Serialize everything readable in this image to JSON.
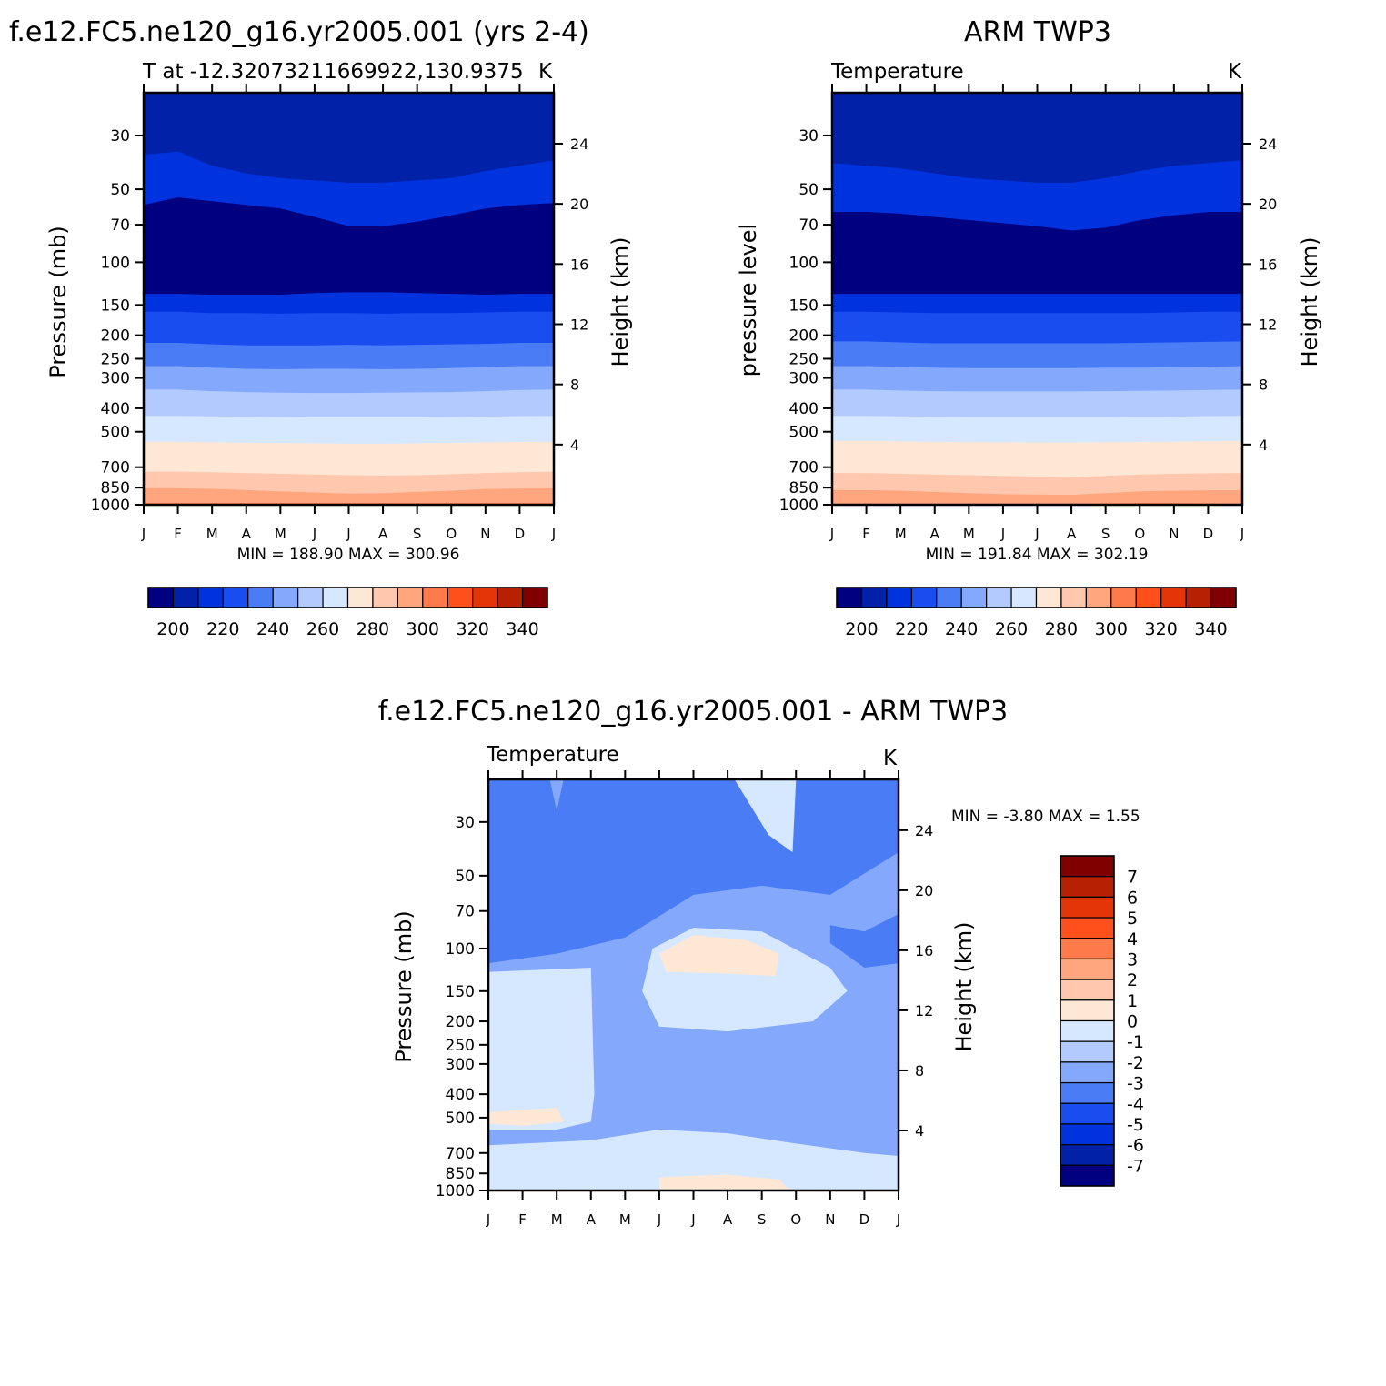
{
  "colors": {
    "temp_levels": [
      "#000080",
      "#0021a8",
      "#0033dd",
      "#1a4df0",
      "#4a7df5",
      "#84a8fb",
      "#b3caff",
      "#d6e8ff",
      "#ffe7d6",
      "#ffc8ae",
      "#ffa67f",
      "#ff7a4a",
      "#ff4f1a",
      "#e43508",
      "#b82004",
      "#800000"
    ],
    "diff_levels": [
      "#800000",
      "#b82004",
      "#e43508",
      "#ff4f1a",
      "#ff7a4a",
      "#ffa67f",
      "#ffc8ae",
      "#ffe7d6",
      "#d6e8ff",
      "#b3caff",
      "#84a8fb",
      "#4a7df5",
      "#1a4df0",
      "#0033dd",
      "#0021a8",
      "#000080"
    ]
  },
  "chart_data": [
    {
      "id": "model",
      "type": "heatmap",
      "title": "f.e12.FC5.ne120_g16.yr2005.001 (yrs 2-4)",
      "subtitle_left": "T at -12.32073211669922,130.9375",
      "subtitle_right": "K",
      "ylabel": "Pressure (mb)",
      "y2label": "Height (km)",
      "minmax": "MIN =  188.90 MAX =  300.96",
      "x_ticks": [
        "J",
        "F",
        "M",
        "A",
        "M",
        "J",
        "J",
        "A",
        "S",
        "O",
        "N",
        "D",
        "J"
      ],
      "pressure_ticks": [
        "30",
        "50",
        "70",
        "100",
        "150",
        "200",
        "250",
        "300",
        "400",
        "500",
        "700",
        "850",
        "1000"
      ],
      "pressure_values": [
        30,
        50,
        70,
        100,
        150,
        200,
        250,
        300,
        400,
        500,
        700,
        850,
        1000
      ],
      "height_ticks": [
        "24",
        "20",
        "16",
        "12",
        "8",
        "4"
      ],
      "height_values": [
        24,
        20,
        16,
        12,
        8,
        4
      ],
      "ylim_mb": [
        20,
        1000
      ],
      "contour_bands": [
        {
          "level": 200,
          "top_mb": [
            20,
            20,
            20,
            20,
            20,
            20,
            20,
            20,
            20,
            20,
            20,
            20,
            20
          ]
        },
        {
          "level": 210,
          "top_mb": [
            36,
            35,
            40,
            43,
            45,
            46,
            47,
            47,
            46,
            45,
            42,
            40,
            38
          ]
        },
        {
          "level": 190,
          "top_mb": [
            58,
            54,
            56,
            58,
            60,
            65,
            71,
            71,
            68,
            64,
            60,
            58,
            57
          ]
        },
        {
          "level": 210,
          "top_mb": [
            135,
            135,
            136,
            136,
            136,
            134,
            133,
            133,
            134,
            135,
            136,
            135,
            135
          ]
        },
        {
          "level": 220,
          "top_mb": [
            160,
            160,
            162,
            162,
            163,
            162,
            162,
            163,
            162,
            162,
            161,
            160,
            160
          ]
        },
        {
          "level": 230,
          "top_mb": [
            215,
            215,
            218,
            220,
            220,
            220,
            219,
            220,
            219,
            218,
            217,
            215,
            215
          ]
        },
        {
          "level": 240,
          "top_mb": [
            268,
            268,
            272,
            275,
            276,
            275,
            275,
            276,
            275,
            273,
            271,
            268,
            268
          ]
        },
        {
          "level": 250,
          "top_mb": [
            335,
            335,
            340,
            343,
            345,
            346,
            346,
            345,
            344,
            343,
            340,
            336,
            335
          ]
        },
        {
          "level": 260,
          "top_mb": [
            430,
            430,
            432,
            434,
            435,
            436,
            436,
            436,
            436,
            435,
            433,
            431,
            430
          ]
        },
        {
          "level": 270,
          "top_mb": [
            550,
            550,
            553,
            555,
            557,
            558,
            560,
            560,
            558,
            556,
            553,
            551,
            550
          ]
        },
        {
          "level": 280,
          "top_mb": [
            730,
            730,
            735,
            740,
            745,
            750,
            755,
            758,
            755,
            748,
            740,
            735,
            730
          ]
        },
        {
          "level": 290,
          "top_mb": [
            855,
            855,
            860,
            870,
            880,
            890,
            900,
            895,
            885,
            875,
            862,
            857,
            855
          ]
        },
        {
          "level": 300,
          "top_mb": [
            985,
            985,
            985,
            985,
            985,
            985,
            985,
            985,
            985,
            985,
            985,
            985,
            985
          ]
        }
      ],
      "colorbar_labels": [
        "200",
        "220",
        "240",
        "260",
        "280",
        "300",
        "320",
        "340"
      ]
    },
    {
      "id": "obs",
      "type": "heatmap",
      "title": "ARM TWP3",
      "subtitle_left": "Temperature",
      "subtitle_right": "K",
      "ylabel": "pressure level",
      "y2label": "Height (km)",
      "minmax": "MIN =  191.84 MAX =  302.19",
      "x_ticks": [
        "J",
        "F",
        "M",
        "A",
        "M",
        "J",
        "J",
        "A",
        "S",
        "O",
        "N",
        "D",
        "J"
      ],
      "pressure_ticks": [
        "30",
        "50",
        "70",
        "100",
        "150",
        "200",
        "250",
        "300",
        "400",
        "500",
        "700",
        "850",
        "1000"
      ],
      "pressure_values": [
        30,
        50,
        70,
        100,
        150,
        200,
        250,
        300,
        400,
        500,
        700,
        850,
        1000
      ],
      "height_ticks": [
        "24",
        "20",
        "16",
        "12",
        "8",
        "4"
      ],
      "height_values": [
        24,
        20,
        16,
        12,
        8,
        4
      ],
      "ylim_mb": [
        20,
        1000
      ],
      "contour_bands": [
        {
          "level": 200,
          "top_mb": [
            20,
            20,
            20,
            20,
            20,
            20,
            20,
            20,
            20,
            20,
            20,
            20,
            20
          ]
        },
        {
          "level": 210,
          "top_mb": [
            39,
            40,
            41,
            43,
            45,
            46,
            47,
            47,
            45,
            42,
            40,
            39,
            38
          ]
        },
        {
          "level": 190,
          "top_mb": [
            62,
            62,
            63,
            65,
            67,
            69,
            71,
            74,
            72,
            67,
            64,
            62,
            62
          ]
        },
        {
          "level": 210,
          "top_mb": [
            135,
            135,
            135,
            135,
            135,
            135,
            135,
            135,
            135,
            135,
            135,
            135,
            135
          ]
        },
        {
          "level": 220,
          "top_mb": [
            160,
            160,
            161,
            162,
            162,
            162,
            162,
            162,
            162,
            162,
            161,
            160,
            160
          ]
        },
        {
          "level": 230,
          "top_mb": [
            212,
            212,
            214,
            216,
            216,
            216,
            216,
            216,
            216,
            215,
            214,
            213,
            212
          ]
        },
        {
          "level": 240,
          "top_mb": [
            268,
            268,
            270,
            272,
            273,
            273,
            273,
            273,
            272,
            272,
            271,
            270,
            268
          ]
        },
        {
          "level": 250,
          "top_mb": [
            335,
            335,
            338,
            340,
            341,
            341,
            341,
            341,
            340,
            339,
            338,
            336,
            335
          ]
        },
        {
          "level": 260,
          "top_mb": [
            430,
            430,
            432,
            434,
            435,
            435,
            435,
            435,
            435,
            434,
            433,
            431,
            430
          ]
        },
        {
          "level": 270,
          "top_mb": [
            545,
            545,
            548,
            550,
            552,
            553,
            554,
            554,
            553,
            551,
            549,
            547,
            545
          ]
        },
        {
          "level": 280,
          "top_mb": [
            740,
            740,
            745,
            750,
            755,
            760,
            765,
            770,
            760,
            750,
            745,
            742,
            740
          ]
        },
        {
          "level": 290,
          "top_mb": [
            870,
            870,
            875,
            885,
            895,
            905,
            908,
            910,
            895,
            880,
            875,
            872,
            870
          ]
        },
        {
          "level": 300,
          "top_mb": [
            995,
            995,
            995,
            995,
            995,
            995,
            995,
            995,
            990,
            985,
            985,
            990,
            995
          ]
        }
      ],
      "colorbar_labels": [
        "200",
        "220",
        "240",
        "260",
        "280",
        "300",
        "320",
        "340"
      ]
    },
    {
      "id": "diff",
      "type": "heatmap",
      "title": "f.e12.FC5.ne120_g16.yr2005.001 - ARM TWP3",
      "subtitle_left": "Temperature",
      "subtitle_right": "K",
      "ylabel": "Pressure (mb)",
      "y2label": "Height (km)",
      "minmax": "MIN =   -3.80 MAX =    1.55",
      "x_ticks": [
        "J",
        "F",
        "M",
        "A",
        "M",
        "J",
        "J",
        "A",
        "S",
        "O",
        "N",
        "D",
        "J"
      ],
      "pressure_ticks": [
        "30",
        "50",
        "70",
        "100",
        "150",
        "200",
        "250",
        "300",
        "400",
        "500",
        "700",
        "850",
        "1000"
      ],
      "pressure_values": [
        30,
        50,
        70,
        100,
        150,
        200,
        250,
        300,
        400,
        500,
        700,
        850,
        1000
      ],
      "height_ticks": [
        "24",
        "20",
        "16",
        "12",
        "8",
        "4"
      ],
      "height_values": [
        24,
        20,
        16,
        12,
        8,
        4
      ],
      "ylim_mb": [
        20,
        1000
      ],
      "regions": [
        {
          "level": "-3 to -2",
          "month_pressure_mb": [
            [
              0,
              20
            ],
            [
              12,
              20
            ],
            [
              12,
              1000
            ],
            [
              0,
              1000
            ]
          ]
        },
        {
          "level": "-2 to -1",
          "month_pressure_mb": [
            [
              0,
              115
            ],
            [
              2,
              105
            ],
            [
              4,
              90
            ],
            [
              6,
              60
            ],
            [
              8,
              55
            ],
            [
              10,
              60
            ],
            [
              12,
              40
            ],
            [
              12,
              1000
            ],
            [
              0,
              1000
            ]
          ]
        },
        {
          "level": "-1 to 0",
          "month_pressure_mb": [
            [
              0,
              125
            ],
            [
              3,
              120
            ],
            [
              3.1,
              400
            ],
            [
              3,
              520
            ],
            [
              2,
              560
            ],
            [
              0,
              560
            ]
          ]
        },
        {
          "level": "-1 to 0",
          "month_pressure_mb": [
            [
              0,
              650
            ],
            [
              3,
              620
            ],
            [
              5,
              560
            ],
            [
              7,
              580
            ],
            [
              9,
              640
            ],
            [
              11,
              700
            ],
            [
              12,
              720
            ],
            [
              12,
              1000
            ],
            [
              0,
              1000
            ]
          ]
        },
        {
          "level": "-1 to 0",
          "month_pressure_mb": [
            [
              4.8,
              100
            ],
            [
              6,
              82
            ],
            [
              8,
              85
            ],
            [
              10,
              120
            ],
            [
              10.5,
              150
            ],
            [
              9.5,
              200
            ],
            [
              7,
              220
            ],
            [
              5,
              210
            ],
            [
              4.5,
              150
            ]
          ]
        },
        {
          "level": "-1 to 0",
          "month_pressure_mb": [
            [
              7.2,
              20
            ],
            [
              9,
              20
            ],
            [
              8.9,
              40
            ],
            [
              8.2,
              34
            ]
          ]
        },
        {
          "level": "0 to 1",
          "month_pressure_mb": [
            [
              5,
              105
            ],
            [
              6,
              88
            ],
            [
              7.5,
              92
            ],
            [
              8.5,
              105
            ],
            [
              8.4,
              130
            ],
            [
              7,
              127
            ],
            [
              5.2,
              125
            ]
          ]
        },
        {
          "level": "0 to 1",
          "month_pressure_mb": [
            [
              0,
              475
            ],
            [
              2,
              455
            ],
            [
              2.2,
              520
            ],
            [
              1,
              540
            ],
            [
              0,
              530
            ]
          ]
        },
        {
          "level": "0 to 1",
          "month_pressure_mb": [
            [
              5,
              880
            ],
            [
              7,
              860
            ],
            [
              8.5,
              900
            ],
            [
              8.8,
              990
            ],
            [
              5,
              990
            ]
          ]
        },
        {
          "level": "-3 to -2",
          "month_pressure_mb": [
            [
              0,
              85
            ],
            [
              1,
              72
            ],
            [
              2.7,
              78
            ],
            [
              2.2,
              92
            ],
            [
              0,
              100
            ]
          ]
        },
        {
          "level": "-3 to -2",
          "month_pressure_mb": [
            [
              10,
              80
            ],
            [
              11,
              85
            ],
            [
              12,
              72
            ],
            [
              12,
              115
            ],
            [
              11,
              120
            ],
            [
              10,
              95
            ]
          ]
        },
        {
          "level": "-2 to -1",
          "month_pressure_mb": [
            [
              1.8,
              20
            ],
            [
              2.2,
              20
            ],
            [
              2,
              27
            ]
          ]
        }
      ],
      "colorbar_labels": [
        "7",
        "6",
        "5",
        "4",
        "3",
        "2",
        "1",
        "0",
        "-1",
        "-2",
        "-3",
        "-4",
        "-5",
        "-6",
        "-7"
      ]
    }
  ]
}
